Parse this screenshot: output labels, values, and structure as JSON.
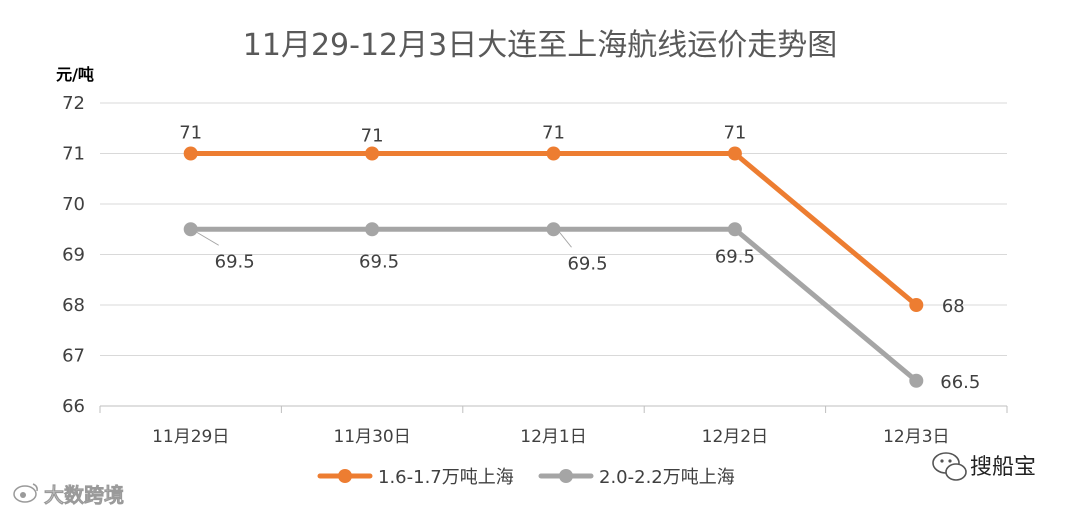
{
  "chart_data": {
    "type": "line",
    "title": "11月29-12月3日大连至上海航线运价走势图",
    "ylabel": "元/吨",
    "xlabel": "",
    "categories": [
      "11月29日",
      "11月30日",
      "12月1日",
      "12月2日",
      "12月3日"
    ],
    "yticks": [
      "66",
      "67",
      "68",
      "69",
      "70",
      "71",
      "72"
    ],
    "ylim": [
      66,
      72
    ],
    "grid": true,
    "legend_position": "bottom",
    "series": [
      {
        "name": "1.6-1.7万吨上海",
        "values": [
          71,
          71,
          71,
          71,
          68
        ],
        "labels": [
          "71",
          "71",
          "71",
          "71",
          "68"
        ],
        "color": "#ED7D31"
      },
      {
        "name": "2.0-2.2万吨上海",
        "values": [
          69.5,
          69.5,
          69.5,
          69.5,
          66.5
        ],
        "labels": [
          "69.5",
          "69.5",
          "69.5",
          "69.5",
          "66.5"
        ],
        "color": "#A5A5A5"
      }
    ]
  },
  "watermarks": {
    "left": "大数跨境",
    "right": "搜船宝",
    "left_icon": "weibo-icon",
    "right_icon": "wechat-icon"
  }
}
